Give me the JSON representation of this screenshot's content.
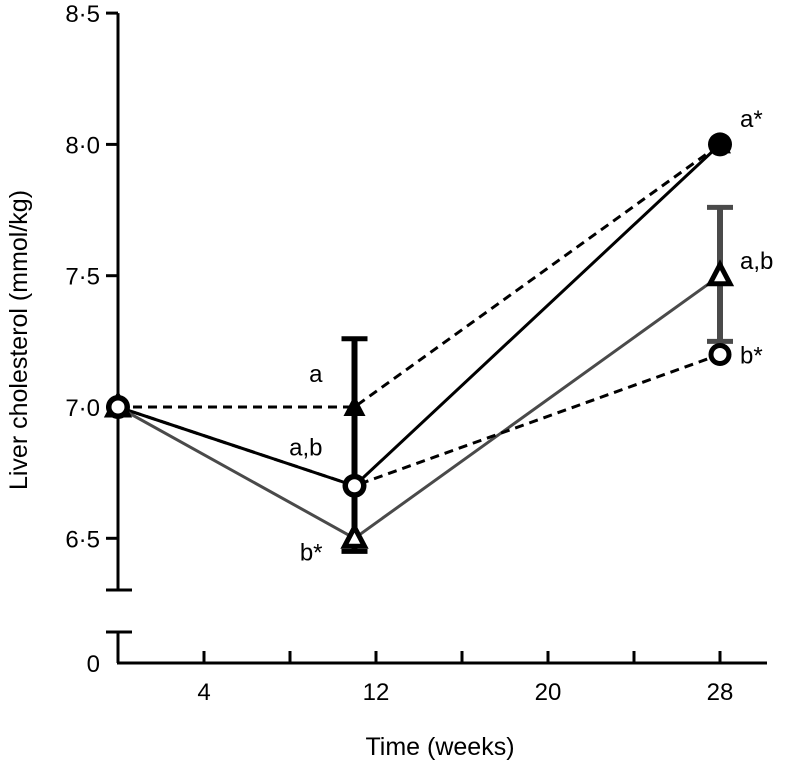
{
  "chart_data": {
    "type": "line",
    "xlabel": "Time (weeks)",
    "ylabel": "Liver cholesterol (mmol/kg)",
    "xlim": [
      0,
      30
    ],
    "ylim": [
      6.3,
      8.5
    ],
    "y_break": {
      "lower": 0,
      "label": "0"
    },
    "x_ticks": [
      4,
      8,
      12,
      16,
      20,
      24,
      28
    ],
    "x_tick_labels": [
      "4",
      "",
      "12",
      "",
      "20",
      "",
      "28"
    ],
    "y_ticks": [
      6.5,
      7.0,
      7.5,
      8.0,
      8.5
    ],
    "y_tick_labels": [
      "6·5",
      "7·0",
      "7·5",
      "8·0",
      "8·5"
    ],
    "x": [
      0,
      11,
      28
    ],
    "series": [
      {
        "name": "solid-filled-circle",
        "style": "solid",
        "color": "#000000",
        "marker": "filled-circle",
        "values": [
          7.0,
          6.7,
          8.0
        ]
      },
      {
        "name": "grey-open-triangle",
        "style": "solid",
        "color": "#4a4a4a",
        "marker": "open-triangle",
        "values": [
          7.0,
          6.5,
          7.5
        ]
      },
      {
        "name": "dashed-filled-triangle",
        "style": "dashed",
        "color": "#000000",
        "marker": "filled-triangle",
        "values": [
          7.0,
          7.0,
          8.0
        ]
      },
      {
        "name": "dashed-open-circle",
        "style": "dashed",
        "color": "#000000",
        "marker": "open-circle",
        "values": [
          7.0,
          6.7,
          7.2
        ]
      }
    ],
    "error_bars": [
      {
        "x": 11,
        "low": 6.45,
        "high": 7.26,
        "color": "#000000"
      },
      {
        "x": 28,
        "low": 7.25,
        "high": 7.76,
        "color": "#4a4a4a"
      }
    ],
    "annotations": [
      {
        "text": "a",
        "x": 11,
        "y": 7.13,
        "side": "left"
      },
      {
        "text": "a,b",
        "x": 11,
        "y": 6.85,
        "side": "left"
      },
      {
        "text": "b*",
        "x": 11,
        "y": 6.45,
        "side": "left"
      },
      {
        "text": "a*",
        "x": 28,
        "y": 8.1,
        "side": "right"
      },
      {
        "text": "a,b",
        "x": 28,
        "y": 7.56,
        "side": "right"
      },
      {
        "text": "b*",
        "x": 28,
        "y": 7.2,
        "side": "right"
      }
    ]
  }
}
